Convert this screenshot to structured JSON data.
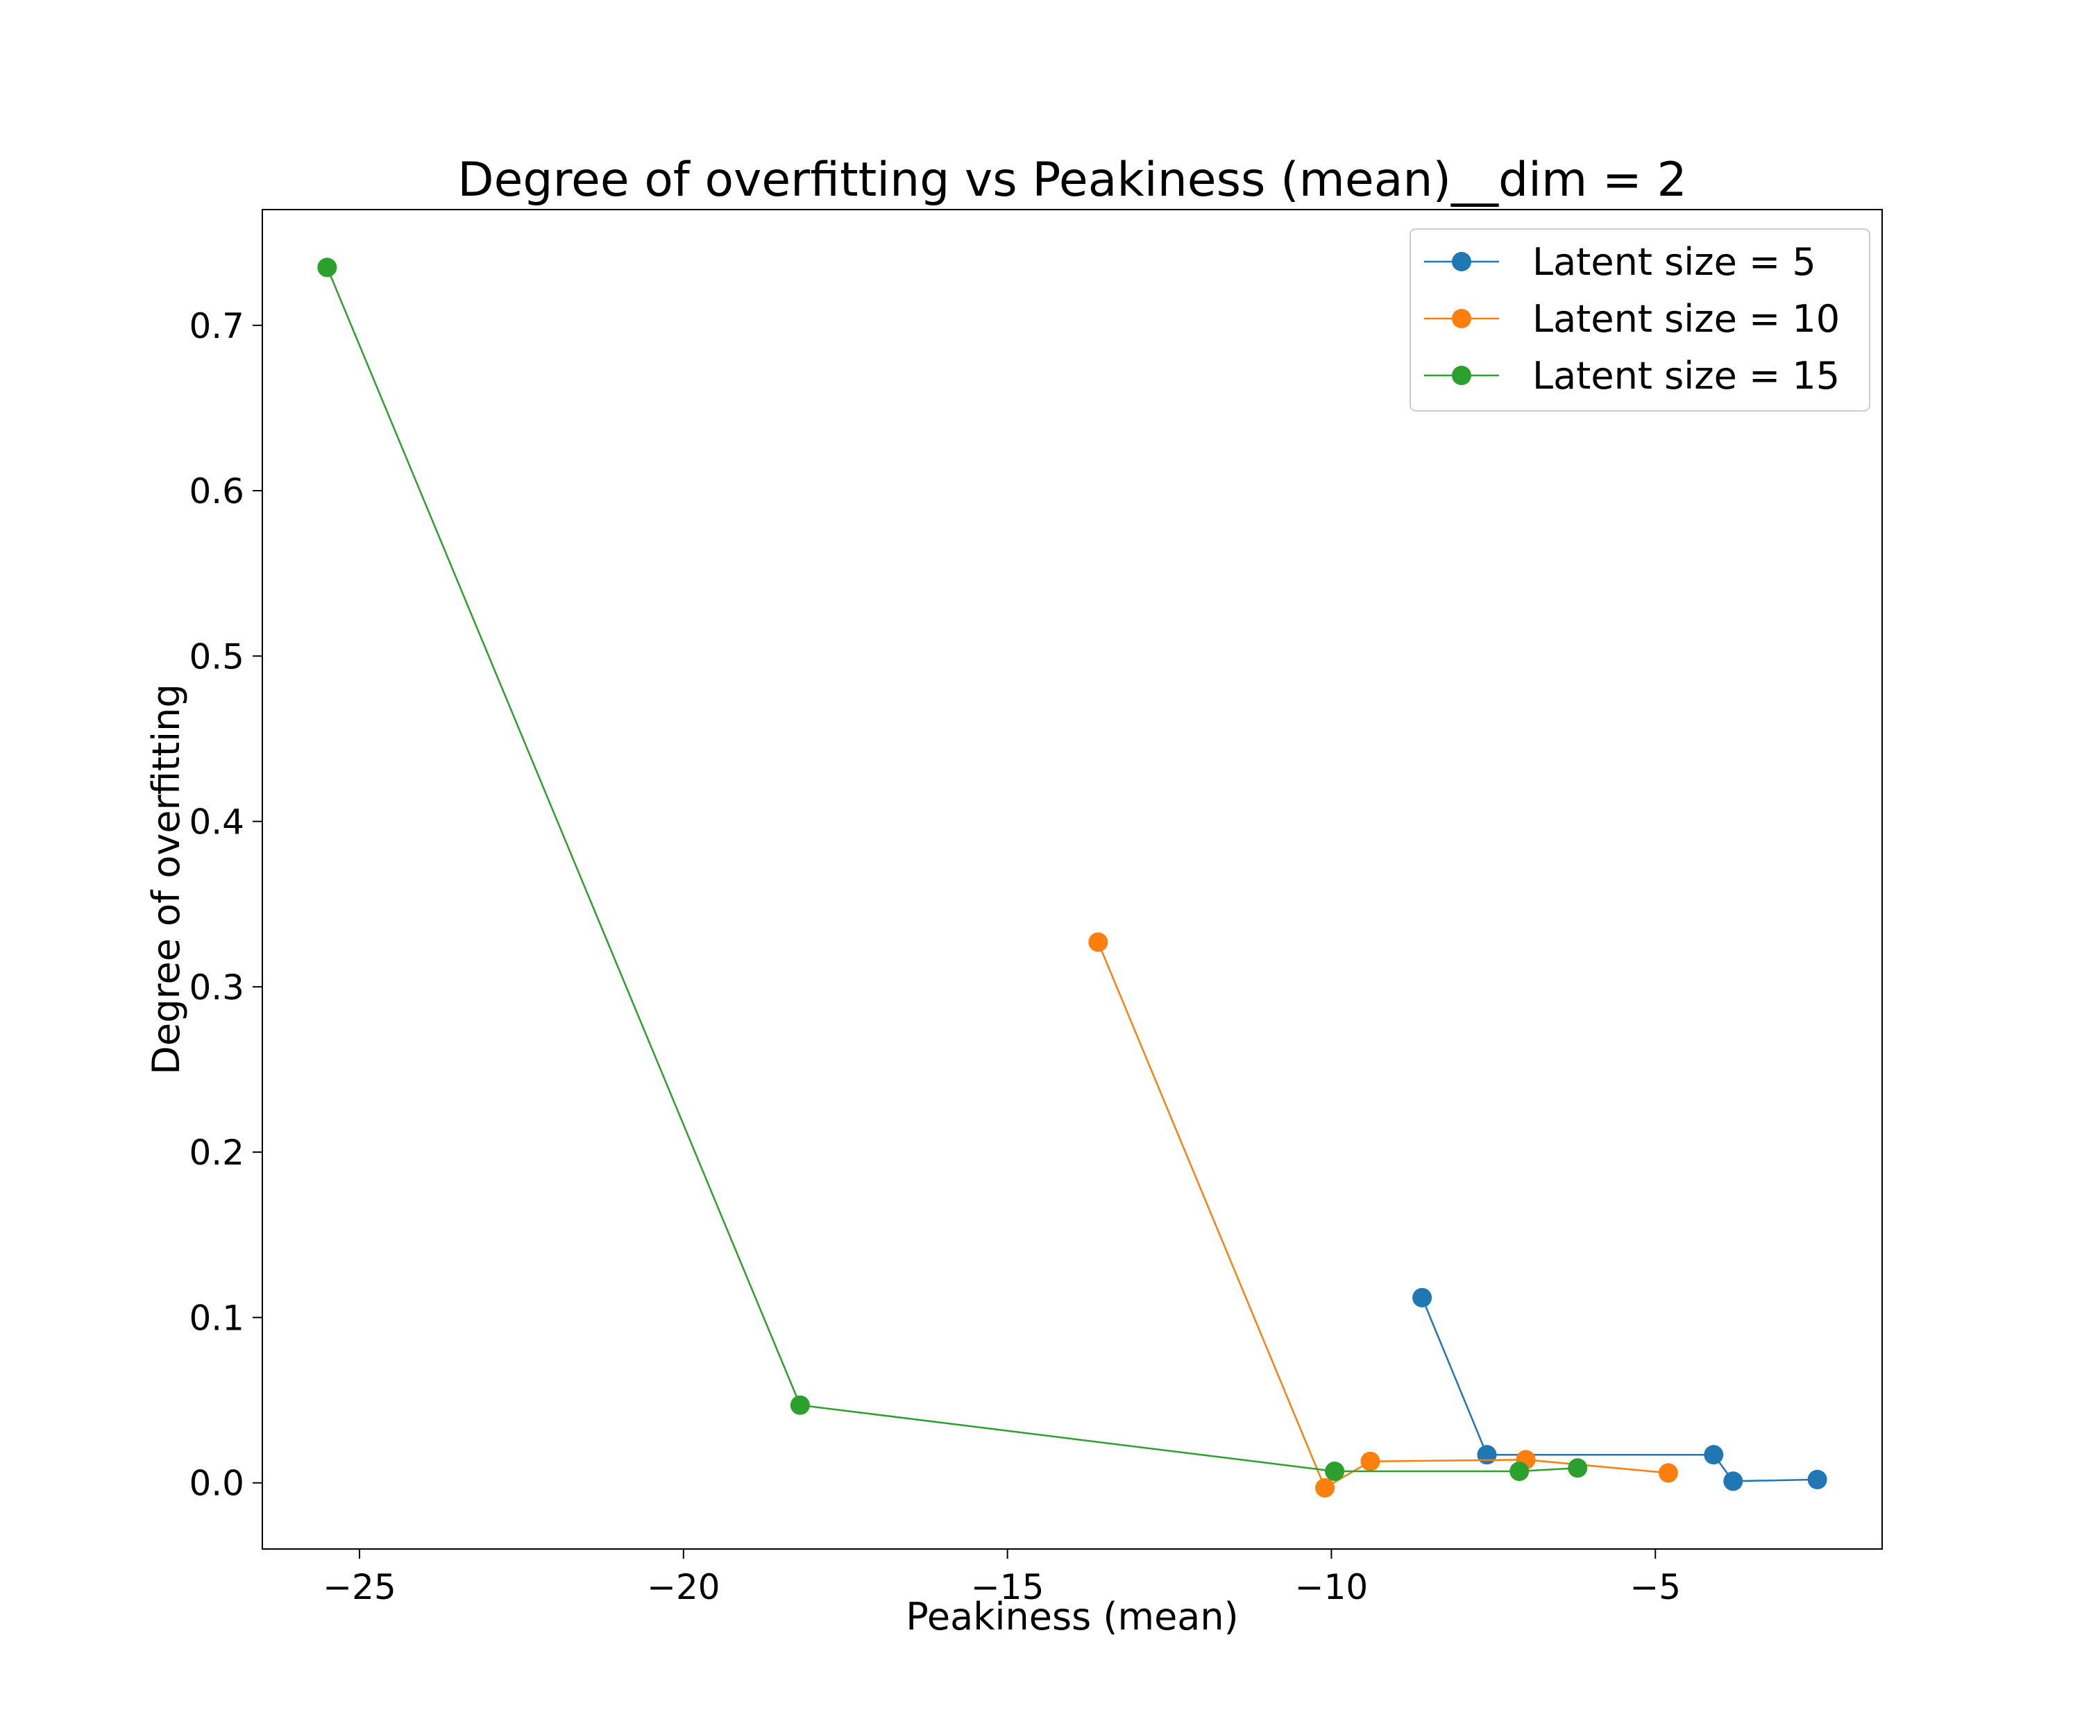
{
  "chart_data": {
    "type": "line",
    "title": "Degree of overfitting vs Peakiness (mean)__dim = 2",
    "xlabel": "Peakiness (mean)",
    "ylabel": "Degree of overfitting",
    "xlim": [
      -26.5,
      -1.5
    ],
    "ylim": [
      -0.04,
      0.77
    ],
    "xticks": [
      -25,
      -20,
      -15,
      -10,
      -5
    ],
    "xtick_labels": [
      "−25",
      "−20",
      "−15",
      "−10",
      "−5"
    ],
    "yticks": [
      0.0,
      0.1,
      0.2,
      0.3,
      0.4,
      0.5,
      0.6,
      0.7
    ],
    "ytick_labels": [
      "0.0",
      "0.1",
      "0.2",
      "0.3",
      "0.4",
      "0.5",
      "0.6",
      "0.7"
    ],
    "grid": false,
    "legend_position": "top-right",
    "series": [
      {
        "name": "Latent size = 5",
        "color": "#1f77b4",
        "x": [
          -8.6,
          -7.6,
          -4.1,
          -3.8,
          -2.5
        ],
        "y": [
          0.112,
          0.017,
          0.017,
          0.001,
          0.002
        ]
      },
      {
        "name": "Latent size = 10",
        "color": "#ff7f0e",
        "x": [
          -13.6,
          -10.1,
          -9.4,
          -7.0,
          -4.8
        ],
        "y": [
          0.327,
          -0.003,
          0.013,
          0.014,
          0.006
        ]
      },
      {
        "name": "Latent size = 15",
        "color": "#2ca02c",
        "x": [
          -25.5,
          -18.2,
          -9.95,
          -7.1,
          -6.2
        ],
        "y": [
          0.735,
          0.047,
          0.007,
          0.007,
          0.009
        ]
      }
    ]
  }
}
